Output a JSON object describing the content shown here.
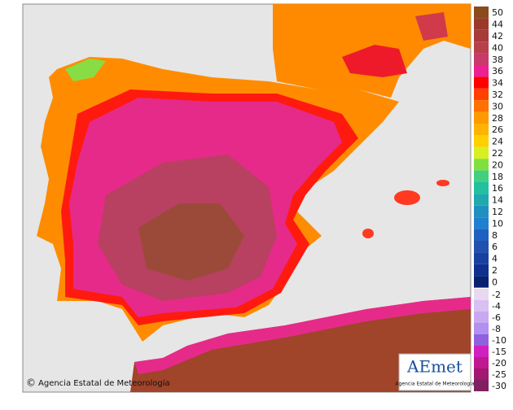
{
  "map": {
    "credit": "Agencia Estatal de Meteorología",
    "logo": {
      "title": "AEmet",
      "subtitle": "Agencia Estatal de Meteorología"
    },
    "legend": {
      "upper": [
        {
          "label": 50,
          "color": "#8b4a1c"
        },
        {
          "label": 44,
          "color": "#9b3a2a"
        },
        {
          "label": 42,
          "color": "#a83a3a"
        },
        {
          "label": 40,
          "color": "#b8404a"
        },
        {
          "label": 38,
          "color": "#c83a6a"
        },
        {
          "label": 36,
          "color": "#ec2090"
        },
        {
          "label": 34,
          "color": "#ff0000"
        },
        {
          "label": 32,
          "color": "#ff4000"
        },
        {
          "label": 30,
          "color": "#ff7000"
        },
        {
          "label": 28,
          "color": "#ff9900"
        },
        {
          "label": 26,
          "color": "#ffb300"
        },
        {
          "label": 24,
          "color": "#ffd000"
        },
        {
          "label": 22,
          "color": "#d8f020"
        },
        {
          "label": 20,
          "color": "#80e040"
        },
        {
          "label": 18,
          "color": "#40d080"
        },
        {
          "label": 16,
          "color": "#20c0a0"
        },
        {
          "label": 14,
          "color": "#20a8b0"
        },
        {
          "label": 12,
          "color": "#2090c0"
        },
        {
          "label": 10,
          "color": "#2080d0"
        },
        {
          "label": 8,
          "color": "#2060c0"
        },
        {
          "label": 6,
          "color": "#2050b0"
        },
        {
          "label": 4,
          "color": "#1840a0"
        },
        {
          "label": 2,
          "color": "#103090"
        },
        {
          "label": 0,
          "color": "#082070"
        }
      ],
      "lower": [
        {
          "label": -2,
          "color": "#e8d8f0"
        },
        {
          "label": -4,
          "color": "#d8c0f0"
        },
        {
          "label": -6,
          "color": "#c8a8f0"
        },
        {
          "label": -8,
          "color": "#b090f0"
        },
        {
          "label": -10,
          "color": "#9060e0"
        },
        {
          "label": -15,
          "color": "#d020c0"
        },
        {
          "label": -20,
          "color": "#c01890"
        },
        {
          "label": -25,
          "color": "#a01870"
        },
        {
          "label": -30,
          "color": "#802060"
        }
      ]
    }
  }
}
